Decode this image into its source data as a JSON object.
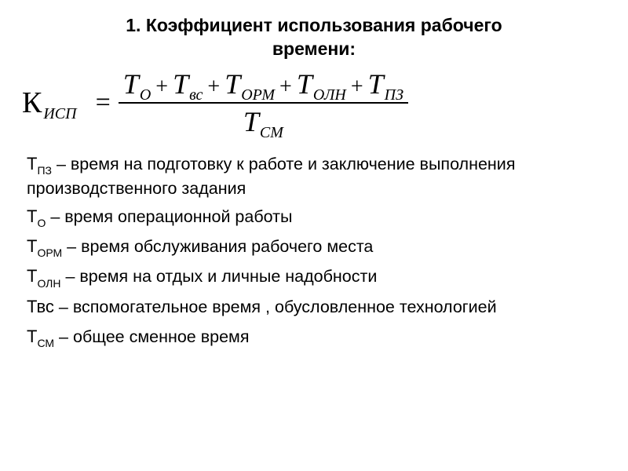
{
  "title_line1": "1. Коэффициент использования рабочего",
  "title_line2": "времени:",
  "formula": {
    "lhs_main": "К",
    "lhs_sub": "ИСП",
    "eq": "=",
    "numerator": [
      {
        "main": "T",
        "sub": "О"
      },
      {
        "main": "T",
        "sub": "вс"
      },
      {
        "main": "T",
        "sub": "ОРМ"
      },
      {
        "main": "T",
        "sub": "ОЛН"
      },
      {
        "main": "T",
        "sub": "ПЗ"
      }
    ],
    "plus": "+",
    "denominator": {
      "main": "T",
      "sub": "СМ"
    }
  },
  "defs": [
    {
      "sym_main": "Т",
      "sym_sub": "ПЗ",
      "text": " – время на подготовку  к работе и заключение выполнения производственного задания"
    },
    {
      "sym_main": "Т",
      "sym_sub": "О",
      "text": " – время операционной работы"
    },
    {
      "sym_main": "Т",
      "sym_sub": "ОРМ",
      "text": " – время обслуживания рабочего места"
    },
    {
      "sym_main": "Т",
      "sym_sub": "ОЛН",
      "text": " – время на отдых и личные надобности"
    },
    {
      "sym_main": "Твс",
      "sym_sub": "",
      "text": " – вспомогательное время , обусловленное технологией"
    },
    {
      "sym_main": "Т",
      "sym_sub": "СМ",
      "text": " – общее сменное время"
    }
  ],
  "style": {
    "bg": "#ffffff",
    "text_color": "#000000",
    "title_fontsize": 23,
    "formula_fontsize": 36,
    "def_fontsize": 21.5
  }
}
